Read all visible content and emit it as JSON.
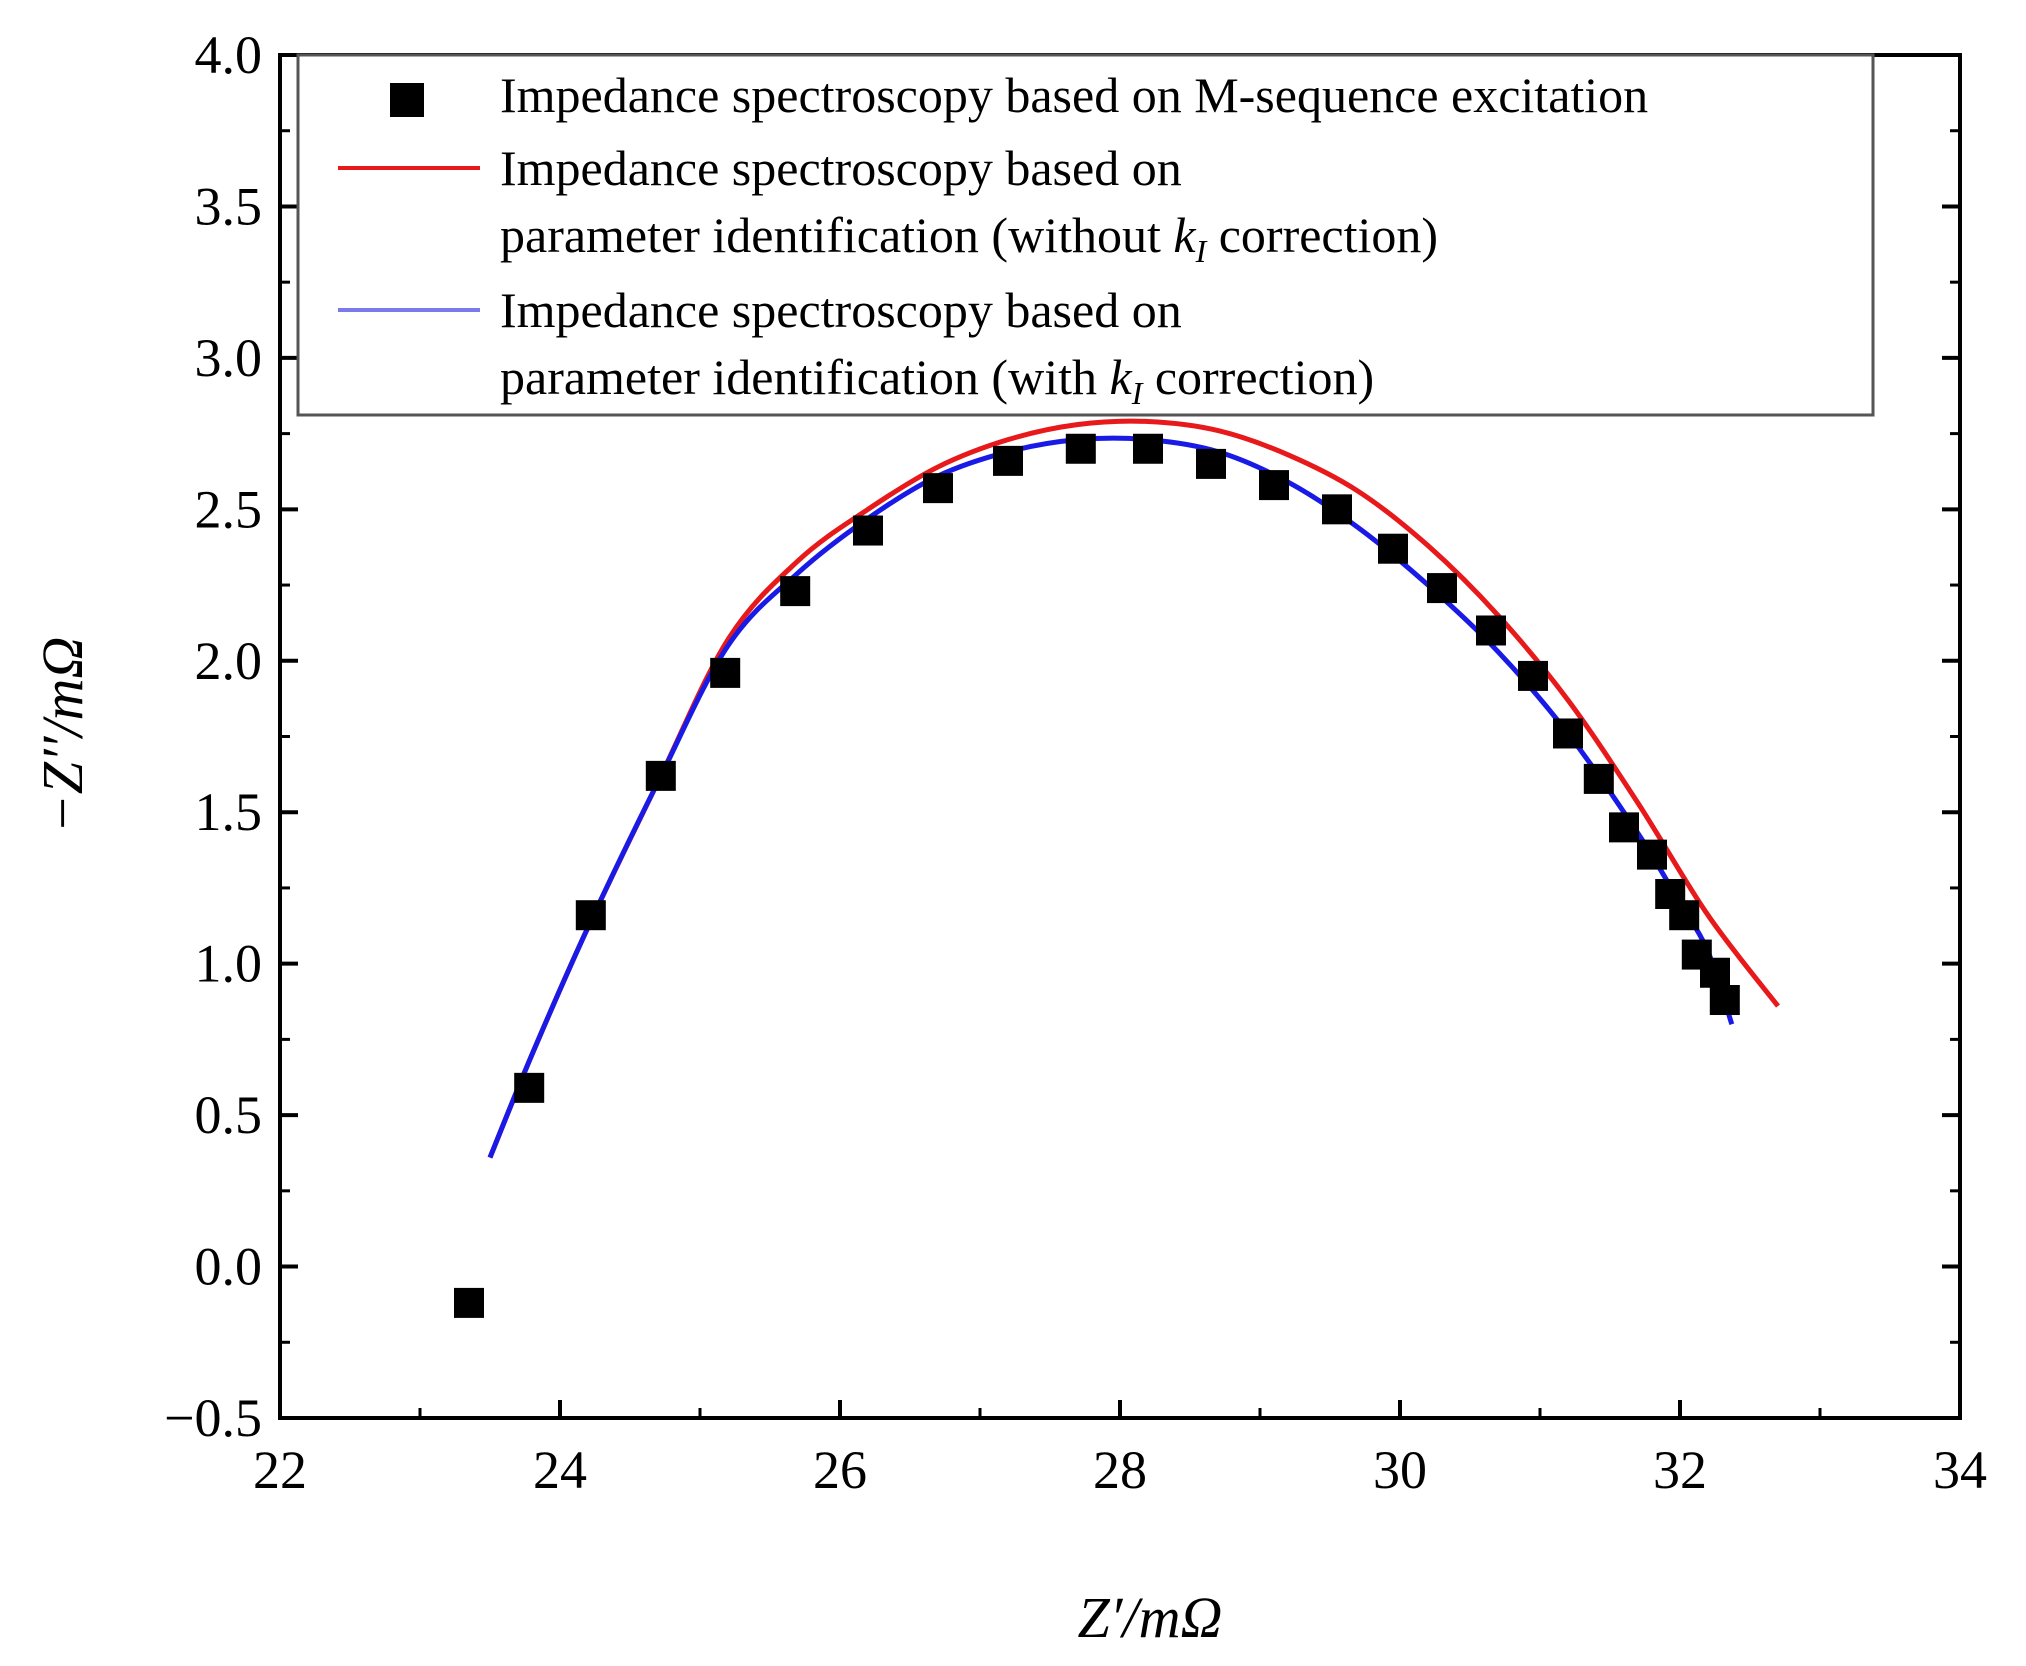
{
  "chart_data": {
    "type": "scatter",
    "xlabel": "Z′/mΩ",
    "ylabel": "−Z′′/mΩ",
    "xlim": [
      22,
      34
    ],
    "ylim": [
      -0.5,
      4.0
    ],
    "xticks": [
      "22",
      "24",
      "26",
      "28",
      "30",
      "32",
      "34"
    ],
    "yticks": [
      "−0.5",
      "0.0",
      "0.5",
      "1.0",
      "1.5",
      "2.0",
      "2.5",
      "3.0",
      "3.5",
      "4.0"
    ],
    "legend_position": "top",
    "legend": {
      "measured": "Impedance spectroscopy based on M-sequence excitation",
      "without_line1": "Impedance spectroscopy based on",
      "without_line2_pre": "parameter identification (without ",
      "without_line2_post": " correction)",
      "with_line1": "Impedance spectroscopy based on",
      "with_line2_pre": "parameter identification (with ",
      "with_line2_post": " correction)",
      "k_symbol": "k",
      "k_subscript": "I"
    },
    "series": [
      {
        "name": "Impedance spectroscopy based on M-sequence excitation",
        "kind": "scatter",
        "color": "#000000",
        "x": [
          23.35,
          23.78,
          24.22,
          24.72,
          25.18,
          25.68,
          26.2,
          26.7,
          27.2,
          27.72,
          28.2,
          28.65,
          29.1,
          29.55,
          29.95,
          30.3,
          30.65,
          30.95,
          31.2,
          31.42,
          31.6,
          31.8,
          31.93,
          32.03,
          32.12,
          32.25,
          32.32
        ],
        "y": [
          -0.12,
          0.59,
          1.16,
          1.62,
          1.96,
          2.23,
          2.43,
          2.57,
          2.66,
          2.7,
          2.7,
          2.65,
          2.58,
          2.5,
          2.37,
          2.24,
          2.1,
          1.95,
          1.76,
          1.61,
          1.45,
          1.36,
          1.23,
          1.16,
          1.03,
          0.97,
          0.88
        ]
      },
      {
        "name": "Impedance spectroscopy based on parameter identification (without kI correction)",
        "kind": "line",
        "color": "#e8191b",
        "x": [
          23.5,
          23.8,
          24.2,
          24.7,
          25.2,
          25.7,
          26.2,
          26.7,
          27.2,
          27.7,
          28.2,
          28.7,
          29.2,
          29.7,
          30.2,
          30.7,
          31.2,
          31.7,
          32.2,
          32.7
        ],
        "y": [
          0.36,
          0.7,
          1.12,
          1.6,
          2.07,
          2.33,
          2.5,
          2.64,
          2.73,
          2.78,
          2.79,
          2.76,
          2.68,
          2.56,
          2.38,
          2.15,
          1.87,
          1.53,
          1.16,
          0.86
        ]
      },
      {
        "name": "Impedance spectroscopy based on parameter identification (with kI correction)",
        "kind": "line",
        "color": "#1a1ae6",
        "x": [
          23.5,
          23.8,
          24.2,
          24.7,
          25.2,
          25.7,
          26.2,
          26.7,
          27.2,
          27.7,
          28.2,
          28.7,
          29.2,
          29.7,
          30.2,
          30.7,
          31.2,
          31.7,
          32.0,
          32.2,
          32.37
        ],
        "y": [
          0.36,
          0.7,
          1.12,
          1.6,
          2.05,
          2.29,
          2.47,
          2.61,
          2.69,
          2.73,
          2.73,
          2.69,
          2.59,
          2.44,
          2.25,
          2.03,
          1.76,
          1.43,
          1.2,
          1.04,
          0.8
        ]
      }
    ]
  }
}
